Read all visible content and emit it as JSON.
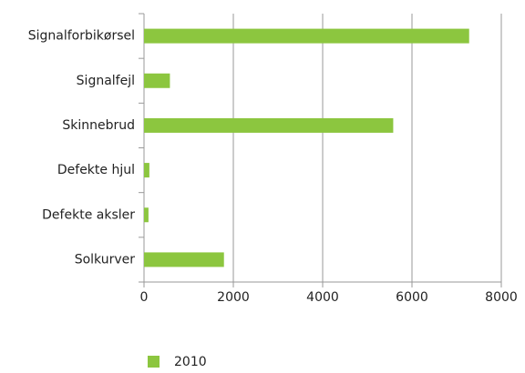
{
  "chart_data": {
    "type": "hbar",
    "categories": [
      "Signalforbikørsel",
      "Signalfejl",
      "Skinnebrud",
      "Defekte hjul",
      "Defekte aksler",
      "Solkurver"
    ],
    "series": [
      {
        "name": "2010",
        "color": "#8cc63f",
        "values": [
          7280,
          580,
          5580,
          120,
          100,
          1790
        ]
      }
    ],
    "xlim": [
      0,
      8000
    ],
    "xticks": [
      0,
      2000,
      4000,
      6000,
      8000
    ],
    "grid": true,
    "legend": "bottom"
  }
}
